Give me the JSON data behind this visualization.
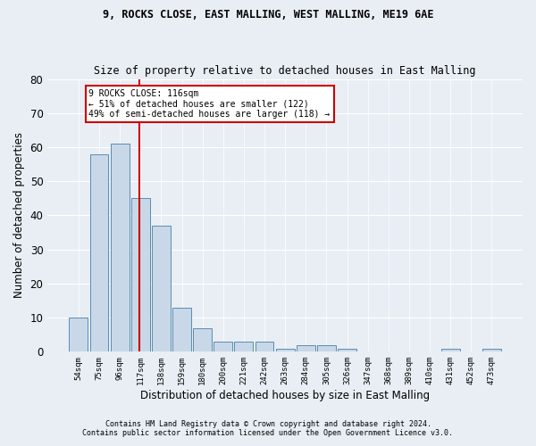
{
  "title1": "9, ROCKS CLOSE, EAST MALLING, WEST MALLING, ME19 6AE",
  "title2": "Size of property relative to detached houses in East Malling",
  "xlabel": "Distribution of detached houses by size in East Malling",
  "ylabel": "Number of detached properties",
  "bar_labels": [
    "54sqm",
    "75sqm",
    "96sqm",
    "117sqm",
    "138sqm",
    "159sqm",
    "180sqm",
    "200sqm",
    "221sqm",
    "242sqm",
    "263sqm",
    "284sqm",
    "305sqm",
    "326sqm",
    "347sqm",
    "368sqm",
    "389sqm",
    "410sqm",
    "431sqm",
    "452sqm",
    "473sqm"
  ],
  "bar_values": [
    10,
    58,
    61,
    45,
    37,
    13,
    7,
    3,
    3,
    3,
    1,
    2,
    2,
    1,
    0,
    0,
    0,
    0,
    1,
    0,
    1
  ],
  "bar_color": "#c8d8e8",
  "bar_edge_color": "#5b8db0",
  "ylim": [
    0,
    80
  ],
  "yticks": [
    0,
    10,
    20,
    30,
    40,
    50,
    60,
    70,
    80
  ],
  "vline_color": "#cc0000",
  "annotation_text": "9 ROCKS CLOSE: 116sqm\n← 51% of detached houses are smaller (122)\n49% of semi-detached houses are larger (118) →",
  "annotation_box_color": "#ffffff",
  "annotation_box_edgecolor": "#cc0000",
  "footer1": "Contains HM Land Registry data © Crown copyright and database right 2024.",
  "footer2": "Contains public sector information licensed under the Open Government Licence v3.0.",
  "background_color": "#e8eef4",
  "grid_color": "#ffffff"
}
